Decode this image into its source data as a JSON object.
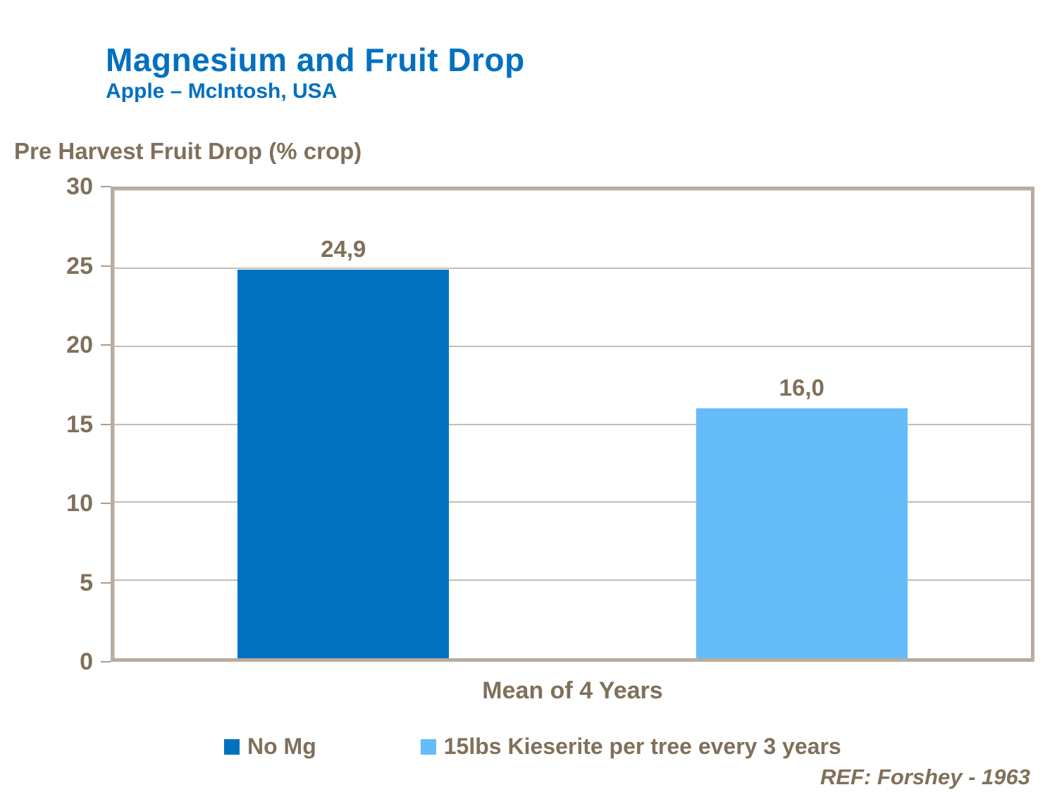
{
  "header": {
    "title": "Magnesium and Fruit Drop",
    "subtitle": "Apple – McIntosh, USA"
  },
  "axis_title": "Pre Harvest Fruit Drop (% crop)",
  "x_category_label": "Mean of 4 Years",
  "ref_note": "REF: Forshey - 1963",
  "colors": {
    "title_blue": "#0070C0",
    "bar_dark_blue": "#0070C0",
    "bar_light_blue": "#66BBF9",
    "text_brown": "#80705A",
    "grid_tan": "#C6BCB0",
    "border_tan": "#B7ACA0"
  },
  "legend": {
    "items": [
      {
        "label": "No Mg",
        "color": "#0070C0"
      },
      {
        "label": "15lbs Kieserite per tree every 3 years",
        "color": "#66BBF9"
      }
    ]
  },
  "chart_data": {
    "type": "bar",
    "title": "Magnesium and Fruit Drop",
    "subtitle": "Apple – McIntosh, USA",
    "categories": [
      "Mean of 4 Years"
    ],
    "series": [
      {
        "name": "No Mg",
        "values": [
          24.9
        ],
        "data_labels": [
          "24,9"
        ],
        "color": "#0070C0"
      },
      {
        "name": "15lbs Kieserite per tree every 3 years",
        "values": [
          16.0
        ],
        "data_labels": [
          "16,0"
        ],
        "color": "#66BBF9"
      }
    ],
    "xlabel": "Mean of 4 Years",
    "ylabel": "Pre Harvest Fruit Drop (% crop)",
    "ylim": [
      0,
      30
    ],
    "yticks": [
      0,
      5,
      10,
      15,
      20,
      25,
      30
    ],
    "grid": true,
    "legend_position": "bottom",
    "annotation": "REF: Forshey - 1963"
  }
}
